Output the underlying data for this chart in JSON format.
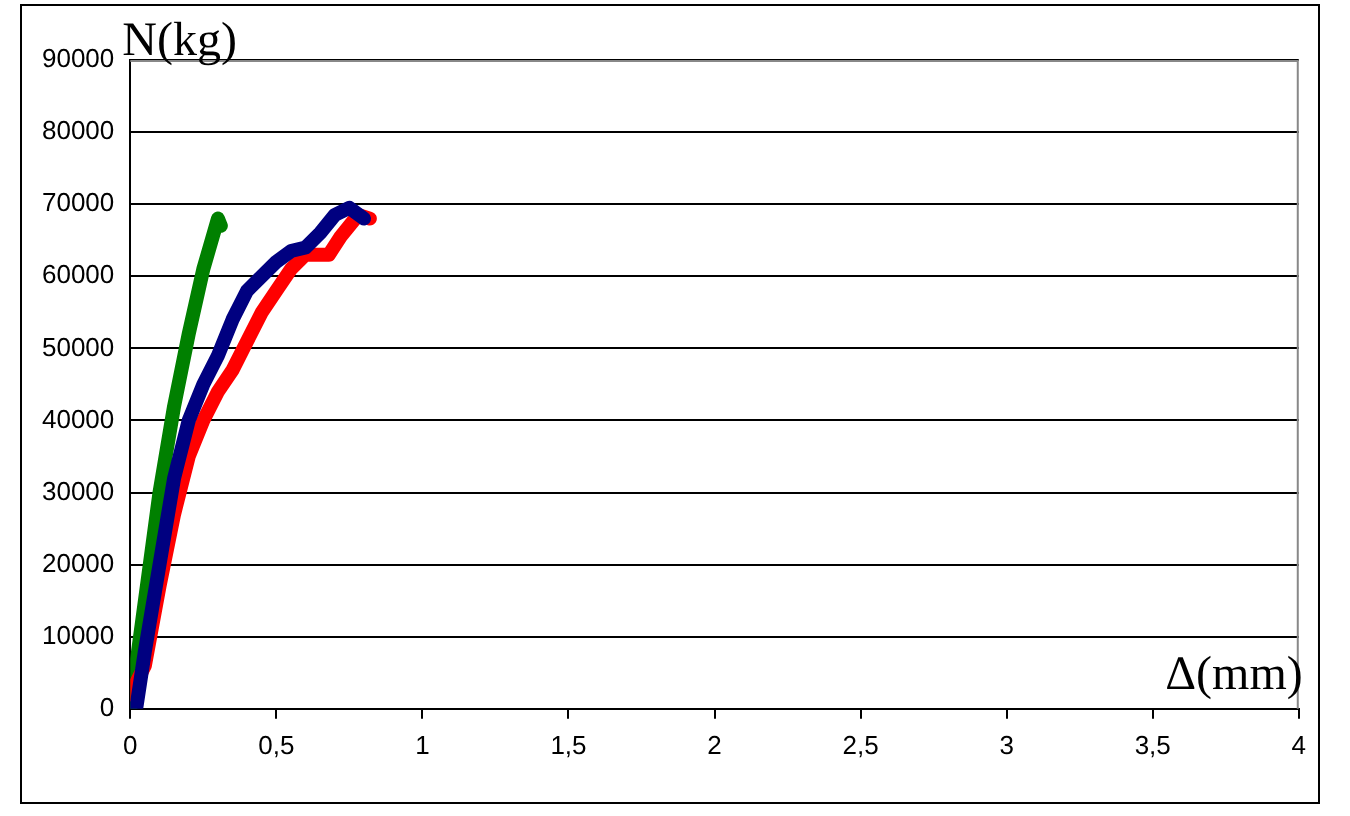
{
  "chart_data": {
    "type": "line",
    "xlabel": "Δ(mm)",
    "ylabel": "N(kg)",
    "marker": "none",
    "line_style": "solid",
    "grid": "y",
    "legend": false,
    "xlim": [
      0,
      4
    ],
    "xticks": [
      0,
      {
        "value": 0.5,
        "label": "0,5"
      },
      1,
      {
        "value": 1.5,
        "label": "1,5"
      },
      2,
      {
        "value": 2.5,
        "label": "2,5"
      },
      3,
      {
        "value": 3.5,
        "label": "3,5"
      },
      4
    ],
    "ylim": [
      0,
      90000
    ],
    "yticks": [
      0,
      10000,
      20000,
      30000,
      40000,
      50000,
      60000,
      70000,
      80000,
      90000
    ],
    "series": [
      {
        "color": "#000080",
        "x": [
          0.02,
          0.05,
          0.1,
          0.15,
          0.2,
          0.25,
          0.3,
          0.35,
          0.4,
          0.5,
          0.55,
          0.6,
          0.65,
          0.7,
          0.75,
          0.8
        ],
        "values": [
          0,
          8000,
          20000,
          32000,
          40000,
          45000,
          49000,
          54000,
          58000,
          62000,
          63500,
          64000,
          66000,
          68500,
          69500,
          68000
        ]
      },
      {
        "color": "#ff0000",
        "x": [
          0,
          0.05,
          0.1,
          0.15,
          0.2,
          0.25,
          0.3,
          0.35,
          0.4,
          0.45,
          0.5,
          0.55,
          0.6,
          0.68,
          0.72,
          0.78,
          0.82
        ],
        "values": [
          2000,
          6000,
          17000,
          27000,
          35000,
          40000,
          44000,
          47000,
          51000,
          55000,
          58000,
          61000,
          63000,
          63000,
          65500,
          68500,
          68000
        ]
      },
      {
        "color": "#008000",
        "x": [
          0,
          0.05,
          0.1,
          0.15,
          0.2,
          0.25,
          0.3,
          0.31
        ],
        "values": [
          0,
          15000,
          30000,
          42000,
          52000,
          61000,
          68000,
          67000
        ]
      }
    ]
  }
}
